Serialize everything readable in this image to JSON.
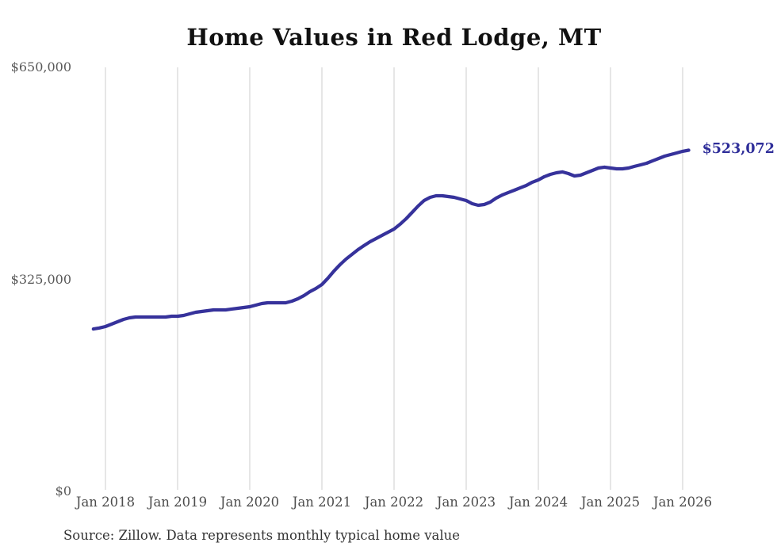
{
  "title": "Home Values in Red Lodge, MT",
  "source_note": "Source: Zillow. Data represents monthly typical home value",
  "end_label": "$523,072",
  "colors": {
    "line": "#36329b",
    "end_label": "#2e2d99",
    "gridline": "#cccccc",
    "y_tick_text": "#595959",
    "x_tick_text": "#4d4d4d",
    "title_text": "#111111",
    "source_text": "#333333",
    "background": "#ffffff"
  },
  "chart_data": {
    "type": "line",
    "title": "Home Values in Red Lodge, MT",
    "xlabel": "",
    "ylabel": "",
    "ylim": [
      0,
      650000
    ],
    "grid": "vertical-only",
    "legend": "none",
    "y_ticks": [
      {
        "label": "$0",
        "value": 0
      },
      {
        "label": "$325,000",
        "value": 325000
      },
      {
        "label": "$650,000",
        "value": 650000
      }
    ],
    "x_ticks": [
      {
        "label": "Jan 2018",
        "date": "2018-01"
      },
      {
        "label": "Jan 2019",
        "date": "2019-01"
      },
      {
        "label": "Jan 2020",
        "date": "2020-01"
      },
      {
        "label": "Jan 2021",
        "date": "2021-01"
      },
      {
        "label": "Jan 2022",
        "date": "2022-01"
      },
      {
        "label": "Jan 2023",
        "date": "2023-01"
      },
      {
        "label": "Jan 2024",
        "date": "2024-01"
      },
      {
        "label": "Jan 2025",
        "date": "2025-01"
      },
      {
        "label": "Jan 2026",
        "date": "2026-01"
      }
    ],
    "end_annotation": {
      "label": "$523,072",
      "value": 523072
    },
    "series": [
      {
        "name": "Monthly typical home value",
        "points": [
          [
            "2017-11",
            249000
          ],
          [
            "2017-12",
            250500
          ],
          [
            "2018-01",
            252700
          ],
          [
            "2018-02",
            256400
          ],
          [
            "2018-03",
            260000
          ],
          [
            "2018-04",
            263700
          ],
          [
            "2018-05",
            266100
          ],
          [
            "2018-06",
            267300
          ],
          [
            "2018-07",
            267300
          ],
          [
            "2018-08",
            267300
          ],
          [
            "2018-09",
            267300
          ],
          [
            "2018-10",
            267300
          ],
          [
            "2018-11",
            267300
          ],
          [
            "2018-12",
            268500
          ],
          [
            "2019-01",
            268500
          ],
          [
            "2019-02",
            269700
          ],
          [
            "2019-03",
            272200
          ],
          [
            "2019-04",
            274600
          ],
          [
            "2019-05",
            275800
          ],
          [
            "2019-06",
            277000
          ],
          [
            "2019-07",
            278200
          ],
          [
            "2019-08",
            278200
          ],
          [
            "2019-09",
            278200
          ],
          [
            "2019-10",
            279500
          ],
          [
            "2019-11",
            280700
          ],
          [
            "2019-12",
            281900
          ],
          [
            "2020-01",
            283100
          ],
          [
            "2020-02",
            285500
          ],
          [
            "2020-03",
            288000
          ],
          [
            "2020-04",
            289200
          ],
          [
            "2020-05",
            289200
          ],
          [
            "2020-06",
            289200
          ],
          [
            "2020-07",
            289200
          ],
          [
            "2020-08",
            291600
          ],
          [
            "2020-09",
            295200
          ],
          [
            "2020-10",
            300100
          ],
          [
            "2020-11",
            306200
          ],
          [
            "2020-12",
            311000
          ],
          [
            "2021-01",
            317100
          ],
          [
            "2021-02",
            326800
          ],
          [
            "2021-03",
            337800
          ],
          [
            "2021-04",
            347500
          ],
          [
            "2021-05",
            356000
          ],
          [
            "2021-06",
            363300
          ],
          [
            "2021-07",
            370600
          ],
          [
            "2021-08",
            376700
          ],
          [
            "2021-09",
            382700
          ],
          [
            "2021-10",
            387600
          ],
          [
            "2021-11",
            392400
          ],
          [
            "2021-12",
            397300
          ],
          [
            "2022-01",
            402200
          ],
          [
            "2022-02",
            409500
          ],
          [
            "2022-03",
            418000
          ],
          [
            "2022-04",
            427700
          ],
          [
            "2022-05",
            437400
          ],
          [
            "2022-06",
            445900
          ],
          [
            "2022-07",
            450800
          ],
          [
            "2022-08",
            453200
          ],
          [
            "2022-09",
            453200
          ],
          [
            "2022-10",
            452000
          ],
          [
            "2022-11",
            450800
          ],
          [
            "2022-12",
            448300
          ],
          [
            "2023-01",
            445900
          ],
          [
            "2023-02",
            441000
          ],
          [
            "2023-03",
            438600
          ],
          [
            "2023-04",
            439800
          ],
          [
            "2023-05",
            443500
          ],
          [
            "2023-06",
            449600
          ],
          [
            "2023-07",
            454400
          ],
          [
            "2023-08",
            458100
          ],
          [
            "2023-09",
            461700
          ],
          [
            "2023-10",
            465400
          ],
          [
            "2023-11",
            469000
          ],
          [
            "2023-12",
            473900
          ],
          [
            "2024-01",
            477500
          ],
          [
            "2024-02",
            482400
          ],
          [
            "2024-03",
            486000
          ],
          [
            "2024-04",
            488400
          ],
          [
            "2024-05",
            489700
          ],
          [
            "2024-06",
            487200
          ],
          [
            "2024-07",
            483600
          ],
          [
            "2024-08",
            484800
          ],
          [
            "2024-09",
            488400
          ],
          [
            "2024-10",
            492100
          ],
          [
            "2024-11",
            495700
          ],
          [
            "2024-12",
            497000
          ],
          [
            "2025-01",
            495700
          ],
          [
            "2025-02",
            494500
          ],
          [
            "2025-03",
            494500
          ],
          [
            "2025-04",
            495700
          ],
          [
            "2025-05",
            498200
          ],
          [
            "2025-06",
            500600
          ],
          [
            "2025-07",
            503000
          ],
          [
            "2025-08",
            506700
          ],
          [
            "2025-09",
            510300
          ],
          [
            "2025-10",
            513900
          ],
          [
            "2025-11",
            516400
          ],
          [
            "2025-12",
            518800
          ],
          [
            "2026-01",
            521300
          ],
          [
            "2026-02",
            523072
          ]
        ]
      }
    ]
  }
}
